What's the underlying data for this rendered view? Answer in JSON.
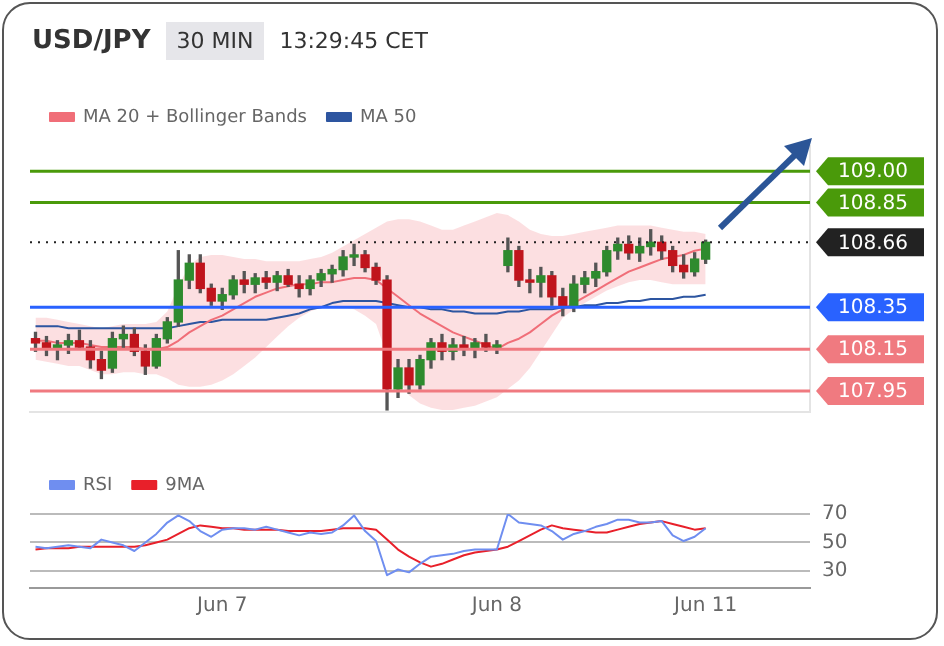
{
  "chart_data": [
    {
      "type": "candlestick",
      "title": "USD/JPY",
      "subtitle": "30 MIN",
      "annotations": [
        "13:29:45 CET"
      ],
      "categories": [
        null,
        null,
        null,
        null,
        null,
        null,
        null,
        null,
        null,
        null,
        null,
        null,
        null,
        null,
        null,
        null,
        null,
        null,
        null,
        null,
        null,
        null,
        null,
        null,
        null,
        null,
        null,
        null,
        null,
        null,
        null,
        null,
        null,
        null,
        null,
        null,
        null,
        null,
        null,
        null,
        null,
        null,
        null,
        null,
        null,
        null,
        null,
        null,
        null,
        null,
        null,
        null,
        null,
        null,
        null,
        null,
        null,
        null,
        null,
        null,
        null,
        null,
        null,
        null,
        null,
        null,
        null,
        null,
        null,
        null,
        null
      ],
      "ohlc": [
        [
          108.2,
          108.23,
          108.14,
          108.18
        ],
        [
          108.18,
          108.21,
          108.12,
          108.15
        ],
        [
          108.15,
          108.19,
          108.1,
          108.17
        ],
        [
          108.17,
          108.22,
          108.13,
          108.19
        ],
        [
          108.19,
          108.24,
          108.15,
          108.16
        ],
        [
          108.16,
          108.19,
          108.06,
          108.1
        ],
        [
          108.1,
          108.14,
          108.01,
          108.05
        ],
        [
          108.06,
          108.23,
          108.04,
          108.2
        ],
        [
          108.2,
          108.26,
          108.15,
          108.22
        ],
        [
          108.22,
          108.25,
          108.12,
          108.14
        ],
        [
          108.14,
          108.17,
          108.03,
          108.07
        ],
        [
          108.07,
          108.22,
          108.06,
          108.2
        ],
        [
          108.2,
          108.3,
          108.18,
          108.28
        ],
        [
          108.28,
          108.62,
          108.26,
          108.48
        ],
        [
          108.48,
          108.6,
          108.44,
          108.56
        ],
        [
          108.56,
          108.6,
          108.42,
          108.44
        ],
        [
          108.44,
          108.46,
          108.36,
          108.38
        ],
        [
          108.38,
          108.44,
          108.34,
          108.41
        ],
        [
          108.41,
          108.5,
          108.39,
          108.48
        ],
        [
          108.48,
          108.52,
          108.42,
          108.46
        ],
        [
          108.46,
          108.51,
          108.42,
          108.49
        ],
        [
          108.49,
          108.52,
          108.44,
          108.47
        ],
        [
          108.47,
          108.52,
          108.43,
          108.5
        ],
        [
          108.5,
          108.53,
          108.45,
          108.46
        ],
        [
          108.46,
          108.5,
          108.4,
          108.44
        ],
        [
          108.44,
          108.5,
          108.41,
          108.48
        ],
        [
          108.48,
          108.53,
          108.45,
          108.51
        ],
        [
          108.51,
          108.55,
          108.47,
          108.53
        ],
        [
          108.53,
          108.62,
          108.5,
          108.59
        ],
        [
          108.59,
          108.65,
          108.55,
          108.6
        ],
        [
          108.6,
          108.62,
          108.52,
          108.54
        ],
        [
          108.54,
          108.56,
          108.46,
          108.48
        ],
        [
          108.48,
          108.5,
          107.86,
          107.96
        ],
        [
          107.96,
          108.1,
          107.92,
          108.06
        ],
        [
          108.06,
          108.1,
          107.94,
          107.98
        ],
        [
          107.98,
          108.12,
          107.96,
          108.1
        ],
        [
          108.1,
          108.2,
          108.06,
          108.18
        ],
        [
          108.18,
          108.22,
          108.1,
          108.14
        ],
        [
          108.14,
          108.2,
          108.1,
          108.17
        ],
        [
          108.17,
          108.21,
          108.12,
          108.15
        ],
        [
          108.15,
          108.2,
          108.11,
          108.18
        ],
        [
          108.18,
          108.22,
          108.14,
          108.16
        ],
        [
          108.16,
          108.19,
          108.13,
          108.17
        ],
        [
          108.55,
          108.68,
          108.52,
          108.62
        ],
        [
          108.62,
          108.64,
          108.45,
          108.48
        ],
        [
          108.48,
          108.53,
          108.42,
          108.47
        ],
        [
          108.47,
          108.54,
          108.4,
          108.5
        ],
        [
          108.5,
          108.52,
          108.36,
          108.4
        ],
        [
          108.4,
          108.44,
          108.31,
          108.35
        ],
        [
          108.35,
          108.5,
          108.33,
          108.46
        ],
        [
          108.46,
          108.52,
          108.42,
          108.49
        ],
        [
          108.49,
          108.56,
          108.45,
          108.52
        ],
        [
          108.52,
          108.64,
          108.5,
          108.62
        ],
        [
          108.62,
          108.68,
          108.58,
          108.65
        ],
        [
          108.65,
          108.69,
          108.58,
          108.61
        ],
        [
          108.61,
          108.68,
          108.57,
          108.64
        ],
        [
          108.64,
          108.72,
          108.6,
          108.66
        ],
        [
          108.66,
          108.69,
          108.58,
          108.62
        ],
        [
          108.62,
          108.64,
          108.52,
          108.55
        ],
        [
          108.55,
          108.6,
          108.49,
          108.52
        ],
        [
          108.52,
          108.61,
          108.5,
          108.58
        ],
        [
          108.58,
          108.67,
          108.56,
          108.66
        ],
        null,
        null,
        null,
        null,
        null,
        null,
        null,
        null,
        null
      ],
      "series": [
        {
          "type": "line",
          "name": "MA 20 + Bollinger Bands",
          "color": "#f06e78",
          "values": [
            108.19,
            108.19,
            108.18,
            108.18,
            108.18,
            108.17,
            108.16,
            108.16,
            108.16,
            108.16,
            108.15,
            108.15,
            108.16,
            108.19,
            108.23,
            108.26,
            108.29,
            108.31,
            108.34,
            108.37,
            108.4,
            108.42,
            108.44,
            108.45,
            108.46,
            108.46,
            108.47,
            108.47,
            108.48,
            108.49,
            108.49,
            108.48,
            108.44,
            108.4,
            108.36,
            108.32,
            108.29,
            108.26,
            108.23,
            108.21,
            108.19,
            108.17,
            108.15,
            108.18,
            108.2,
            108.23,
            108.27,
            108.31,
            108.34,
            108.37,
            108.4,
            108.43,
            108.46,
            108.49,
            108.52,
            108.54,
            108.56,
            108.58,
            108.59,
            108.6,
            108.62,
            108.63,
            null,
            null,
            null,
            null,
            null,
            null,
            null,
            null,
            null
          ],
          "upper": [
            108.3,
            108.3,
            108.29,
            108.28,
            108.27,
            108.26,
            108.25,
            108.26,
            108.27,
            108.27,
            108.27,
            108.28,
            108.33,
            108.45,
            108.55,
            108.59,
            108.6,
            108.6,
            108.59,
            108.58,
            108.58,
            108.57,
            108.57,
            108.57,
            108.57,
            108.58,
            108.59,
            108.61,
            108.64,
            108.67,
            108.7,
            108.73,
            108.76,
            108.77,
            108.77,
            108.76,
            108.74,
            108.72,
            108.72,
            108.74,
            108.76,
            108.78,
            108.8,
            108.79,
            108.76,
            108.72,
            108.7,
            108.69,
            108.69,
            108.7,
            108.71,
            108.72,
            108.73,
            108.74,
            108.74,
            108.74,
            108.74,
            108.73,
            108.72,
            108.71,
            108.71,
            108.7,
            null,
            null,
            null,
            null,
            null,
            null,
            null,
            null,
            null
          ],
          "lower": [
            108.1,
            108.09,
            108.08,
            108.07,
            108.07,
            108.05,
            108.03,
            108.03,
            108.04,
            108.04,
            108.03,
            108.03,
            108.01,
            107.98,
            107.97,
            107.97,
            107.98,
            108.0,
            108.03,
            108.07,
            108.11,
            108.16,
            108.21,
            108.26,
            108.3,
            108.33,
            108.35,
            108.36,
            108.35,
            108.34,
            108.31,
            108.27,
            108.12,
            108.0,
            107.93,
            107.89,
            107.87,
            107.86,
            107.86,
            107.87,
            107.88,
            107.9,
            107.92,
            107.96,
            108.0,
            108.06,
            108.14,
            108.22,
            108.3,
            108.34,
            108.37,
            108.4,
            108.43,
            108.45,
            108.47,
            108.48,
            108.48,
            108.47,
            108.46,
            108.46,
            108.46,
            108.46,
            null,
            null,
            null,
            null,
            null,
            null,
            null,
            null,
            null
          ]
        },
        {
          "type": "line",
          "name": "MA 50",
          "color": "#2d55a0",
          "values": [
            108.26,
            108.26,
            108.26,
            108.25,
            108.25,
            108.25,
            108.25,
            108.25,
            108.25,
            108.25,
            108.25,
            108.25,
            108.25,
            108.26,
            108.27,
            108.28,
            108.28,
            108.29,
            108.29,
            108.29,
            108.29,
            108.29,
            108.3,
            108.31,
            108.32,
            108.34,
            108.35,
            108.37,
            108.38,
            108.38,
            108.38,
            108.38,
            108.37,
            108.36,
            108.35,
            108.35,
            108.34,
            108.34,
            108.33,
            108.33,
            108.32,
            108.32,
            108.32,
            108.33,
            108.33,
            108.34,
            108.34,
            108.34,
            108.35,
            108.35,
            108.36,
            108.36,
            108.37,
            108.37,
            108.38,
            108.38,
            108.39,
            108.39,
            108.39,
            108.4,
            108.4,
            108.41,
            null,
            null,
            null,
            null,
            null,
            null,
            null,
            null,
            null
          ]
        }
      ],
      "ylim": [
        107.85,
        109.12
      ],
      "ref_lines": [
        {
          "axis": "y",
          "value": 109.0,
          "label": "109.00",
          "color": "#4a9a0a"
        },
        {
          "axis": "y",
          "value": 108.85,
          "label": "108.85",
          "color": "#4a9a0a"
        },
        {
          "axis": "y",
          "value": 108.66,
          "label": "108.66",
          "color": "#222222",
          "line_style": "dotted"
        },
        {
          "axis": "y",
          "value": 108.35,
          "label": "108.35",
          "color": "#2962ff"
        },
        {
          "axis": "y",
          "value": 108.15,
          "label": "108.15",
          "color": "#f07a80"
        },
        {
          "axis": "y",
          "value": 107.95,
          "label": "107.95",
          "color": "#f07a80"
        }
      ],
      "legend": "top left"
    },
    {
      "type": "line",
      "categories": [
        null,
        null,
        null,
        null,
        null,
        null,
        null,
        null,
        null,
        null,
        null,
        null,
        null,
        null,
        null,
        null,
        null,
        "Jun 7",
        null,
        null,
        null,
        null,
        null,
        null,
        null,
        null,
        null,
        null,
        null,
        null,
        null,
        null,
        null,
        null,
        null,
        null,
        null,
        null,
        null,
        null,
        null,
        null,
        "Jun 8",
        null,
        null,
        null,
        null,
        null,
        null,
        null,
        null,
        null,
        null,
        null,
        null,
        null,
        null,
        null,
        null,
        null,
        null,
        "Jun 11",
        null,
        null,
        null,
        null,
        null,
        null,
        null,
        null,
        null
      ],
      "series": [
        {
          "name": "RSI",
          "color": "#6f8ef0",
          "values": [
            47,
            46,
            47,
            48,
            47,
            46,
            52,
            50,
            48,
            44,
            50,
            56,
            64,
            69,
            65,
            58,
            54,
            59,
            60,
            60,
            59,
            61,
            59,
            57,
            55,
            57,
            56,
            57,
            62,
            69,
            58,
            51,
            27,
            31,
            29,
            35,
            40,
            41,
            42,
            44,
            45,
            45,
            45,
            70,
            64,
            63,
            62,
            58,
            52,
            56,
            58,
            61,
            63,
            66,
            66,
            64,
            64,
            65,
            55,
            51,
            54,
            60,
            null,
            null,
            null,
            null,
            null,
            null,
            null,
            null,
            null
          ]
        },
        {
          "name": "9MA",
          "color": "#e8202a",
          "values": [
            45,
            46,
            46,
            46,
            47,
            47,
            47,
            47,
            47,
            47,
            48,
            50,
            52,
            56,
            60,
            62,
            61,
            60,
            60,
            59,
            59,
            59,
            59,
            58,
            58,
            58,
            58,
            59,
            60,
            60,
            60,
            59,
            52,
            45,
            40,
            36,
            33,
            35,
            38,
            41,
            43,
            44,
            45,
            47,
            51,
            55,
            59,
            62,
            60,
            59,
            58,
            57,
            57,
            59,
            61,
            63,
            64,
            65,
            63,
            61,
            59,
            60,
            null,
            null,
            null,
            null,
            null,
            null,
            null,
            null,
            null
          ]
        }
      ],
      "ylim": [
        18,
        70
      ],
      "yticks": [
        30,
        50,
        70
      ],
      "grid": "y",
      "legend": "top left"
    }
  ]
}
